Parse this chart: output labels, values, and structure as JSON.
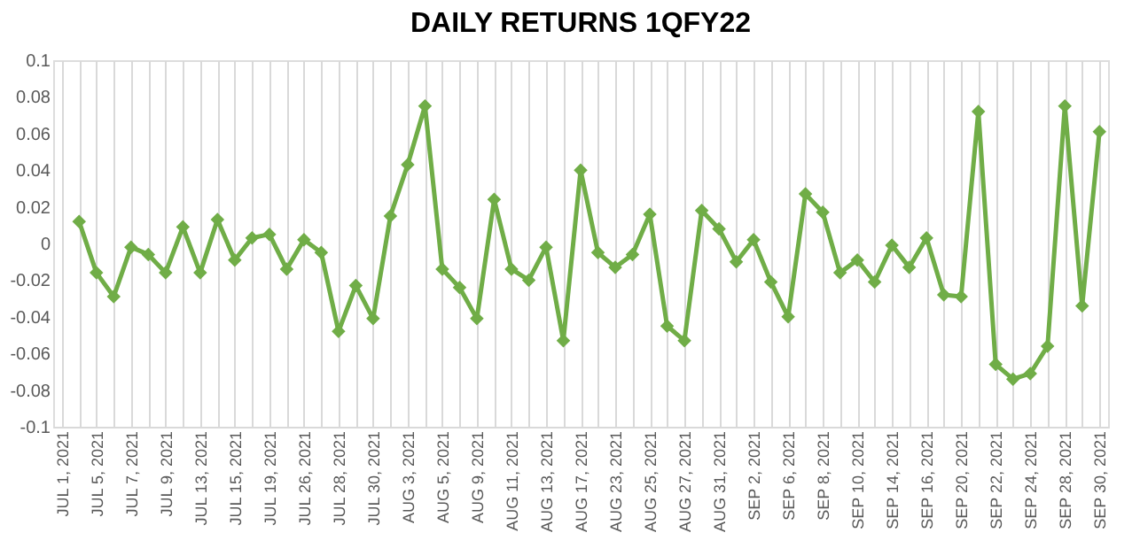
{
  "chart_data": {
    "type": "line",
    "title": "DAILY RETURNS 1QFY22",
    "categories": [
      "JUL 1, 2021",
      null,
      "JUL 5, 2021",
      null,
      "JUL 7, 2021",
      null,
      "JUL 9, 2021",
      null,
      "JUL 13, 2021",
      null,
      "JUL 15, 2021",
      null,
      "JUL 19, 2021",
      null,
      "JUL 26, 2021",
      null,
      "JUL 28, 2021",
      null,
      "JUL 30, 2021",
      null,
      "AUG 3, 2021",
      null,
      "AUG 5, 2021",
      null,
      "AUG 9, 2021",
      null,
      "AUG 11, 2021",
      null,
      "AUG 13, 2021",
      null,
      "AUG 17, 2021",
      null,
      "AUG 23, 2021",
      null,
      "AUG 25, 2021",
      null,
      "AUG 27, 2021",
      null,
      "AUG 31, 2021",
      null,
      "SEP 2, 2021",
      null,
      "SEP 6, 2021",
      null,
      "SEP 8, 2021",
      null,
      "SEP 10, 2021",
      null,
      "SEP 14, 2021",
      null,
      "SEP 16, 2021",
      null,
      "SEP 20, 2021",
      null,
      "SEP 22, 2021",
      null,
      "SEP 24, 2021",
      null,
      "SEP 28, 2021",
      null,
      "SEP 30, 2021"
    ],
    "series": [
      {
        "color": "#70ad47",
        "values": [
          null,
          0.012,
          -0.016,
          -0.029,
          -0.002,
          -0.006,
          -0.016,
          0.009,
          -0.016,
          0.013,
          -0.009,
          0.003,
          0.005,
          -0.014,
          0.002,
          -0.005,
          -0.048,
          -0.023,
          -0.041,
          0.015,
          0.043,
          0.075,
          -0.014,
          -0.024,
          -0.041,
          0.024,
          -0.014,
          -0.02,
          -0.002,
          -0.053,
          0.04,
          -0.005,
          -0.013,
          -0.006,
          0.016,
          -0.045,
          -0.053,
          0.018,
          0.008,
          -0.01,
          0.002,
          -0.021,
          -0.04,
          0.027,
          0.017,
          -0.016,
          -0.009,
          -0.021,
          -0.001,
          -0.013,
          0.003,
          -0.028,
          -0.029,
          0.072,
          -0.066,
          -0.074,
          -0.071,
          -0.056,
          0.075,
          -0.034,
          0.061
        ]
      }
    ],
    "ylim": [
      -0.1,
      0.1
    ],
    "yticks": [
      -0.1,
      -0.08,
      -0.06,
      -0.04,
      -0.02,
      0,
      0.02,
      0.04,
      0.06,
      0.08,
      0.1
    ],
    "grid": "x",
    "marker": "diamond",
    "line_style": "solid"
  }
}
